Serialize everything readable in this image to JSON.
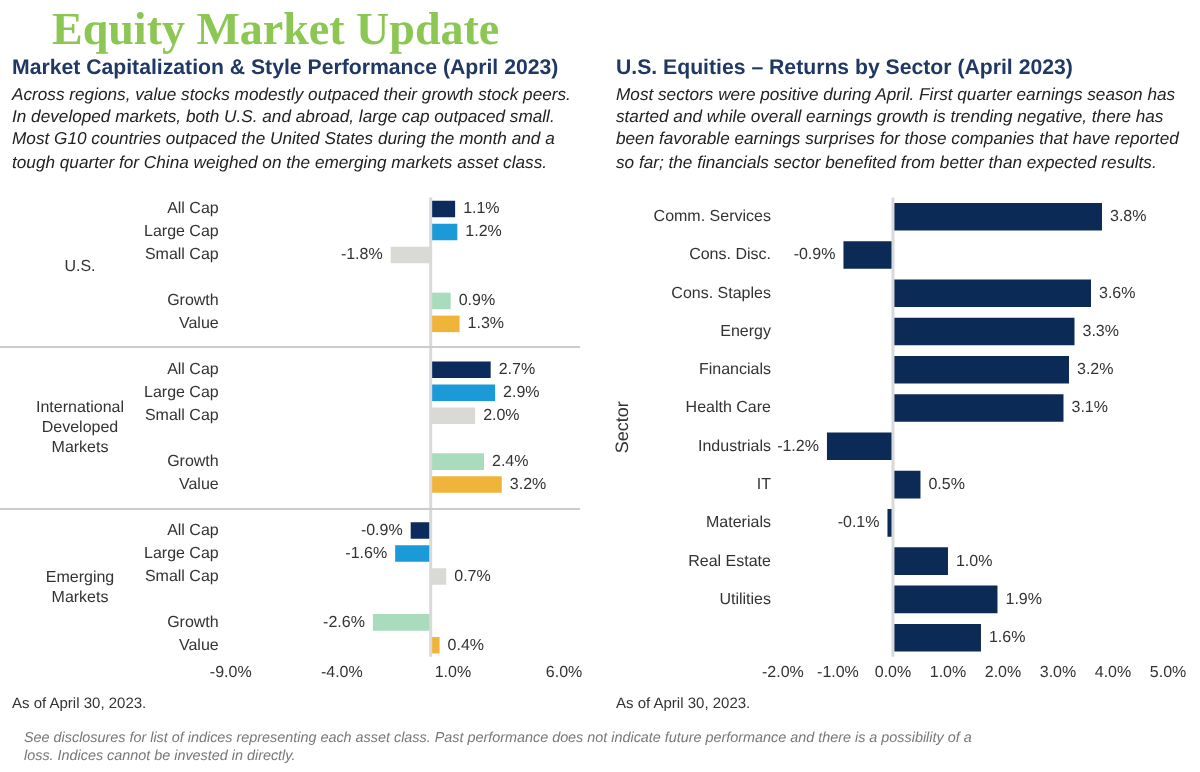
{
  "chart_data": [
    {
      "type": "other",
      "title": "Equity Market Update",
      "annotations": [
        "See disclosures for list of indices representing each asset class. Past performance does not indicate future performance and there is a possibility of a loss. Indices cannot be invested in directly."
      ]
    },
    {
      "type": "bar",
      "orientation": "horizontal",
      "title": "Market Capitalization & Style Performance (April 2023)",
      "subtitle": "Across regions, value stocks modestly outpaced their growth stock peers. In developed markets, both U.S. and abroad, large cap outpaced small. Most G10 countries outpaced the United States during the month and a tough quarter for China weighed on the emerging markets asset class.",
      "categories": [
        "All Cap",
        "Large Cap",
        "Small Cap",
        null,
        "Growth",
        "Value",
        null,
        "All Cap",
        "Large Cap",
        "Small Cap",
        null,
        "Growth",
        "Value",
        null,
        "All Cap",
        "Large Cap",
        "Small Cap",
        null,
        "Growth",
        "Value"
      ],
      "values": [
        1.1,
        1.2,
        -1.8,
        null,
        0.9,
        1.3,
        null,
        2.7,
        2.9,
        2.0,
        null,
        2.4,
        3.2,
        null,
        -0.9,
        -1.6,
        0.7,
        null,
        -2.6,
        0.4
      ],
      "value_labels": [
        "1.1%",
        "1.2%",
        "-1.8%",
        null,
        "0.9%",
        "1.3%",
        null,
        "2.7%",
        "2.9%",
        "2.0%",
        null,
        "2.4%",
        "3.2%",
        null,
        "-0.9%",
        "-1.6%",
        "0.7%",
        null,
        "-2.6%",
        "0.4%"
      ],
      "colors": [
        "#0b2b5c",
        "#1b9ad8",
        "#d9d9d6",
        "#ffffff",
        "#a9dcbc",
        "#f1b43a",
        "#ffffff",
        "#0b2b5c",
        "#1b9ad8",
        "#d9d9d6",
        "#ffffff",
        "#a9dcbc",
        "#f1b43a",
        "#ffffff",
        "#0b2b5c",
        "#1b9ad8",
        "#d9d9d6",
        "#ffffff",
        "#a9dcbc",
        "#f1b43a"
      ],
      "xlim": [
        -9,
        6
      ],
      "xticks": [
        {
          "value": -9,
          "label": "-9.0%"
        },
        {
          "value": -4,
          "label": "-4.0%"
        },
        {
          "value": 1,
          "label": "1.0%"
        },
        {
          "value": 6,
          "label": "6.0%"
        }
      ],
      "ref_lines": [
        {
          "axis": "x",
          "value": 0,
          "color": "#d9d9d9"
        }
      ],
      "grid": false,
      "legend": false,
      "annotations": [
        "U.S.",
        "International Developed Markets",
        "Emerging Markets",
        "As of April 30, 2023."
      ]
    },
    {
      "type": "bar",
      "orientation": "horizontal",
      "title": "U.S. Equities – Returns by Sector (April 2023)",
      "subtitle": "Most sectors were positive during April. First quarter earnings season has started and while overall earnings growth is trending negative, there has been favorable earnings surprises for those companies that have reported so far; the financials sector benefited from better than expected results.",
      "ylabel": "Sector",
      "categories": [
        "Comm. Services",
        "Cons. Disc.",
        "Cons. Staples",
        "Energy",
        "Financials",
        "Health Care",
        "Industrials",
        "IT",
        "Materials",
        "Real Estate",
        "Utilities",
        null
      ],
      "values": [
        3.8,
        -0.9,
        3.6,
        3.3,
        3.2,
        3.1,
        -1.2,
        0.5,
        -0.1,
        1.0,
        1.9,
        1.6
      ],
      "value_labels": [
        "3.8%",
        "-0.9%",
        "3.6%",
        "3.3%",
        "3.2%",
        "3.1%",
        "-1.2%",
        "0.5%",
        "-0.1%",
        "1.0%",
        "1.9%",
        "1.6%"
      ],
      "color": "#0c2a56",
      "xlim": [
        -2,
        5
      ],
      "xticks": [
        {
          "value": -2,
          "label": "-2.0%"
        },
        {
          "value": -1,
          "label": "-1.0%"
        },
        {
          "value": 0,
          "label": "0.0%"
        },
        {
          "value": 1,
          "label": "1.0%"
        },
        {
          "value": 2,
          "label": "2.0%"
        },
        {
          "value": 3,
          "label": "3.0%"
        },
        {
          "value": 4,
          "label": "4.0%"
        },
        {
          "value": 5,
          "label": "5.0%"
        }
      ],
      "ref_lines": [
        {
          "axis": "x",
          "value": 0,
          "color": "#d9d9d9"
        }
      ],
      "grid": false,
      "legend": false,
      "annotations": [
        "As of April 30, 2023."
      ]
    }
  ]
}
